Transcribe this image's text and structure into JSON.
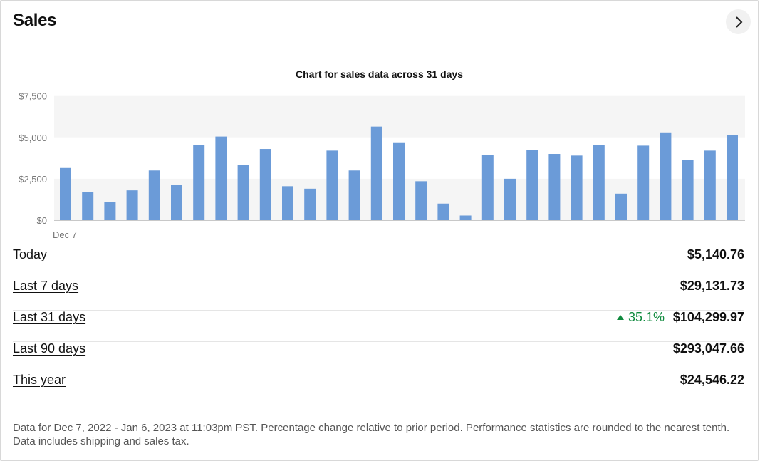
{
  "title": "Sales",
  "next_icon": "chevron-right-icon",
  "chart_data": {
    "type": "bar",
    "title": "Chart for sales data across 31 days",
    "xlabel": "",
    "ylabel": "",
    "x_tick_labels": [
      "Dec 7"
    ],
    "y_tick_labels": [
      "$7,500",
      "$5,000",
      "$2,500",
      "$0"
    ],
    "ylim": [
      0,
      7700
    ],
    "bar_color": "#6b9bd8",
    "values": [
      3150,
      1700,
      1100,
      1800,
      3000,
      2150,
      4550,
      5050,
      3350,
      4300,
      2050,
      1900,
      4200,
      3000,
      5650,
      4700,
      2350,
      1000,
      280,
      3950,
      2500,
      4250,
      4000,
      3900,
      4550,
      1600,
      4500,
      5300,
      3650,
      4200,
      5140.76
    ]
  },
  "rows": [
    {
      "label": "Today",
      "value": "$5,140.76"
    },
    {
      "label": "Last 7 days",
      "value": "$29,131.73"
    },
    {
      "label": "Last 31 days",
      "value": "$104,299.97",
      "change": "35.1%"
    },
    {
      "label": "Last 90 days",
      "value": "$293,047.66"
    },
    {
      "label": "This year",
      "value": "$24,546.22"
    }
  ],
  "colors": {
    "positive": "#108a3e",
    "bar": "#6b9bd8"
  },
  "footnote": "Data for Dec 7, 2022 - Jan 6, 2023 at 11:03pm PST. Percentage change relative to prior period. Performance statistics are rounded to the nearest tenth. Data includes shipping and sales tax."
}
